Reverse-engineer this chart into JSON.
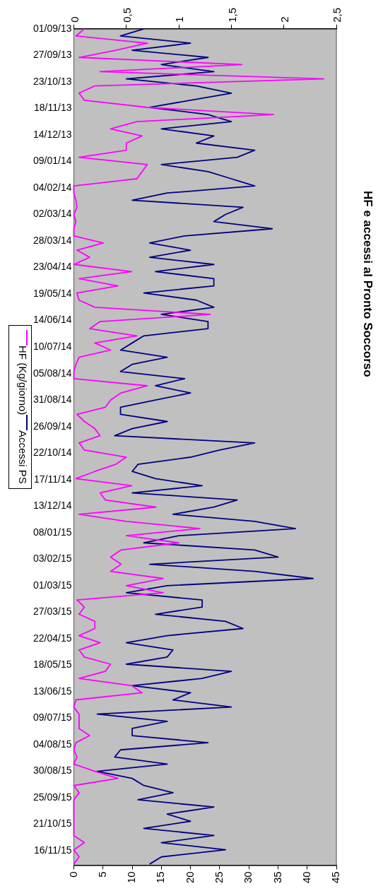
{
  "chart_data": {
    "type": "line",
    "orientation": "horizontal",
    "title": "HF e accessi al Pronto Soccorso",
    "x": [
      "2013-09-01",
      "2013-09-08",
      "2013-09-15",
      "2013-09-22",
      "2013-09-29",
      "2013-10-06",
      "2013-10-13",
      "2013-10-20",
      "2013-10-27",
      "2013-11-03",
      "2013-11-10",
      "2013-11-17",
      "2013-11-24",
      "2013-12-01",
      "2013-12-08",
      "2013-12-15",
      "2013-12-22",
      "2013-12-29",
      "2014-01-05",
      "2014-01-12",
      "2014-01-19",
      "2014-01-26",
      "2014-02-02",
      "2014-02-09",
      "2014-02-16",
      "2014-02-23",
      "2014-03-02",
      "2014-03-09",
      "2014-03-16",
      "2014-03-23",
      "2014-03-30",
      "2014-04-06",
      "2014-04-13",
      "2014-04-20",
      "2014-04-27",
      "2014-05-04",
      "2014-05-11",
      "2014-05-18",
      "2014-05-25",
      "2014-06-01",
      "2014-06-08",
      "2014-06-15",
      "2014-06-22",
      "2014-06-29",
      "2014-07-06",
      "2014-07-13",
      "2014-07-20",
      "2014-07-27",
      "2014-08-03",
      "2014-08-10",
      "2014-08-17",
      "2014-08-24",
      "2014-08-31",
      "2014-09-07",
      "2014-09-14",
      "2014-09-21",
      "2014-09-28",
      "2014-10-05",
      "2014-10-12",
      "2014-10-19",
      "2014-10-26",
      "2014-11-02",
      "2014-11-09",
      "2014-11-16",
      "2014-11-23",
      "2014-11-30",
      "2014-12-07",
      "2014-12-14",
      "2014-12-21",
      "2014-12-28",
      "2015-01-04",
      "2015-01-11",
      "2015-01-18",
      "2015-01-25",
      "2015-02-01",
      "2015-02-08",
      "2015-02-15",
      "2015-02-22",
      "2015-03-01",
      "2015-03-08",
      "2015-03-15",
      "2015-03-22",
      "2015-03-29",
      "2015-04-05",
      "2015-04-12",
      "2015-04-19",
      "2015-04-26",
      "2015-05-03",
      "2015-05-10",
      "2015-05-17",
      "2015-05-24",
      "2015-05-31",
      "2015-06-07",
      "2015-06-14",
      "2015-06-21",
      "2015-06-28",
      "2015-07-05",
      "2015-07-12",
      "2015-07-19",
      "2015-07-26",
      "2015-08-02",
      "2015-08-09",
      "2015-08-16",
      "2015-08-23",
      "2015-08-30",
      "2015-09-06",
      "2015-09-13",
      "2015-09-20",
      "2015-09-27",
      "2015-10-04",
      "2015-10-11",
      "2015-10-18",
      "2015-10-25",
      "2015-11-01",
      "2015-11-08",
      "2015-11-15",
      "2015-11-22",
      "2015-11-29"
    ],
    "series": [
      {
        "name": "HF (Kg/giorno)",
        "color": "#ff00ff",
        "axis": "x2",
        "values": [
          0.1,
          0.02,
          0.7,
          0.4,
          0.05,
          1.6,
          0.25,
          2.38,
          0.2,
          0.05,
          0.1,
          0.7,
          1.9,
          0.6,
          0.35,
          0.65,
          0.5,
          0.5,
          0.05,
          0.7,
          0.65,
          0.6,
          0,
          0,
          0.02,
          0.03,
          0,
          0.02,
          0,
          0,
          0.28,
          0.03,
          0.15,
          0,
          0.55,
          0.05,
          0.42,
          0.03,
          0.05,
          0.2,
          1.3,
          0.25,
          0.15,
          0.6,
          0.2,
          0.35,
          0.05,
          0.02,
          0,
          0,
          0.7,
          0.45,
          0.35,
          0.3,
          0.03,
          0.1,
          0.2,
          0.25,
          0.05,
          0.1,
          0.5,
          0.4,
          0.2,
          0.02,
          0.55,
          0.25,
          0.3,
          0.78,
          0.05,
          0.5,
          1.2,
          0.5,
          1.0,
          0.45,
          0.35,
          0.45,
          0.35,
          0.85,
          0.5,
          0.85,
          0.03,
          0.1,
          0.05,
          0.2,
          0.2,
          0.05,
          0.25,
          0.05,
          0.1,
          0.35,
          0.3,
          0.05,
          0.55,
          0.65,
          0.02,
          0,
          0.05,
          0.05,
          0.05,
          0.15,
          0.02,
          0,
          0.03,
          0,
          0.2,
          0.42,
          0,
          0.05,
          0,
          0,
          0,
          0,
          0,
          0,
          0.1,
          0,
          0.05,
          0
        ]
      },
      {
        "name": "Accessi PS",
        "color": "#000080",
        "values": [
          12,
          8,
          20,
          10,
          23,
          15,
          24,
          9,
          21,
          27,
          20,
          13,
          23,
          27,
          15,
          24,
          21,
          31,
          28,
          15,
          23,
          27,
          31,
          16,
          10,
          29,
          26,
          24,
          34,
          19,
          13,
          20,
          13,
          24,
          14,
          24,
          24,
          12,
          21,
          24,
          15,
          23,
          23,
          12,
          10,
          8,
          16,
          10,
          8,
          19,
          14,
          20,
          14,
          8,
          8,
          16,
          10,
          7,
          31,
          25,
          20,
          11,
          10,
          14,
          22,
          10,
          28,
          24,
          17,
          31,
          38,
          18,
          12,
          31,
          35,
          13,
          31,
          41,
          16,
          9,
          22,
          22,
          14,
          26,
          29,
          16,
          9,
          17,
          16,
          9,
          27,
          22,
          10,
          20,
          17,
          27,
          4,
          16,
          10,
          10,
          23,
          8,
          7,
          16,
          4,
          10,
          12,
          17,
          11,
          24,
          16,
          20,
          12,
          24,
          15,
          26,
          15,
          13
        ]
      }
    ],
    "ylim": [
      "2015-11-30",
      "2013-09-01"
    ],
    "yticks": [
      {
        "value": "2013-09-01",
        "label": "01/09/13"
      },
      {
        "value": "2013-09-27",
        "label": "27/09/13"
      },
      {
        "value": "2013-10-23",
        "label": "23/10/13"
      },
      {
        "value": "2013-11-18",
        "label": "18/11/13"
      },
      {
        "value": "2013-12-14",
        "label": "14/12/13"
      },
      {
        "value": "2014-01-09",
        "label": "09/01/14"
      },
      {
        "value": "2014-02-04",
        "label": "04/02/14"
      },
      {
        "value": "2014-03-02",
        "label": "02/03/14"
      },
      {
        "value": "2014-03-28",
        "label": "28/03/14"
      },
      {
        "value": "2014-04-23",
        "label": "23/04/14"
      },
      {
        "value": "2014-05-19",
        "label": "19/05/14"
      },
      {
        "value": "2014-06-14",
        "label": "14/06/14"
      },
      {
        "value": "2014-07-10",
        "label": "10/07/14"
      },
      {
        "value": "2014-08-05",
        "label": "05/08/14"
      },
      {
        "value": "2014-08-31",
        "label": "31/08/14"
      },
      {
        "value": "2014-09-26",
        "label": "26/09/14"
      },
      {
        "value": "2014-10-22",
        "label": "22/10/14"
      },
      {
        "value": "2014-11-17",
        "label": "17/11/14"
      },
      {
        "value": "2014-12-13",
        "label": "13/12/14"
      },
      {
        "value": "2015-01-08",
        "label": "08/01/15"
      },
      {
        "value": "2015-02-03",
        "label": "03/02/15"
      },
      {
        "value": "2015-03-01",
        "label": "01/03/15"
      },
      {
        "value": "2015-03-27",
        "label": "27/03/15"
      },
      {
        "value": "2015-04-22",
        "label": "22/04/15"
      },
      {
        "value": "2015-05-18",
        "label": "18/05/15"
      },
      {
        "value": "2015-06-13",
        "label": "13/06/15"
      },
      {
        "value": "2015-07-09",
        "label": "09/07/15"
      },
      {
        "value": "2015-08-04",
        "label": "04/08/15"
      },
      {
        "value": "2015-08-30",
        "label": "30/08/15"
      },
      {
        "value": "2015-09-25",
        "label": "25/09/15"
      },
      {
        "value": "2015-10-21",
        "label": "21/10/15"
      },
      {
        "value": "2015-11-16",
        "label": "16/11/15"
      }
    ],
    "x2lim": [
      0,
      2.5
    ],
    "x2ticks": [
      0,
      {
        "value": 0.5,
        "label": "0,5"
      },
      1,
      {
        "value": 1.5,
        "label": "1,5"
      },
      2,
      {
        "value": 2.5,
        "label": "2,5"
      }
    ],
    "xlim": [
      0,
      45
    ],
    "xticks": [
      0,
      5,
      10,
      15,
      20,
      25,
      30,
      35,
      40,
      45
    ],
    "grid": false,
    "legend": "left",
    "marker": "none",
    "line_style": "solid"
  }
}
